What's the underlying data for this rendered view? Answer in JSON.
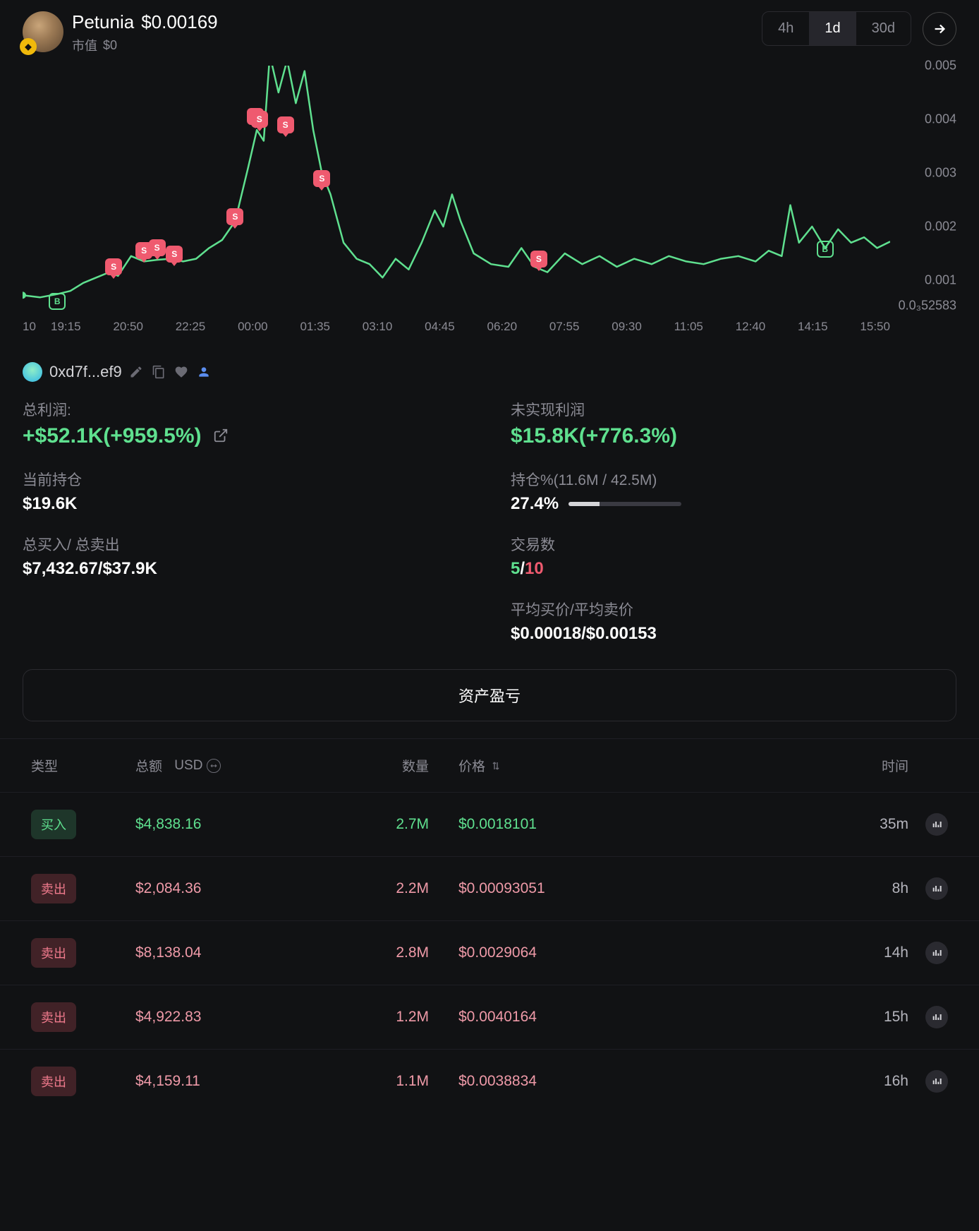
{
  "header": {
    "token_name": "Petunia",
    "token_price": "$0.00169",
    "mcap_label": "市值",
    "mcap_value": "$0",
    "chain_letter": "◆"
  },
  "timeframes": {
    "options": [
      "4h",
      "1d",
      "30d"
    ],
    "active": "1d"
  },
  "chart": {
    "type": "line",
    "line_color": "#5fe08f",
    "background_color": "#111214",
    "ylim": [
      0.00052583,
      0.005
    ],
    "y_ticks": [
      {
        "value": 0.005,
        "label": "0.005"
      },
      {
        "value": 0.004,
        "label": "0.004"
      },
      {
        "value": 0.003,
        "label": "0.003"
      },
      {
        "value": 0.002,
        "label": "0.002"
      },
      {
        "value": 0.001,
        "label": "0.001"
      },
      {
        "value": 0.00052583,
        "label": "0.0₃52583"
      }
    ],
    "x_left_label": "10",
    "x_labels": [
      "19:15",
      "20:50",
      "22:25",
      "00:00",
      "01:35",
      "03:10",
      "04:45",
      "06:20",
      "07:55",
      "09:30",
      "11:05",
      "12:40",
      "14:15",
      "15:50"
    ],
    "price_points": [
      {
        "x": 0.0,
        "y": 0.00072
      },
      {
        "x": 0.02,
        "y": 0.00068
      },
      {
        "x": 0.04,
        "y": 0.00074
      },
      {
        "x": 0.055,
        "y": 0.0008
      },
      {
        "x": 0.07,
        "y": 0.00095
      },
      {
        "x": 0.085,
        "y": 0.00105
      },
      {
        "x": 0.1,
        "y": 0.00115
      },
      {
        "x": 0.11,
        "y": 0.00108
      },
      {
        "x": 0.125,
        "y": 0.00145
      },
      {
        "x": 0.14,
        "y": 0.00135
      },
      {
        "x": 0.155,
        "y": 0.00138
      },
      {
        "x": 0.17,
        "y": 0.0014
      },
      {
        "x": 0.185,
        "y": 0.00135
      },
      {
        "x": 0.2,
        "y": 0.0014
      },
      {
        "x": 0.215,
        "y": 0.0016
      },
      {
        "x": 0.23,
        "y": 0.00175
      },
      {
        "x": 0.245,
        "y": 0.0021
      },
      {
        "x": 0.26,
        "y": 0.0031
      },
      {
        "x": 0.27,
        "y": 0.0038
      },
      {
        "x": 0.278,
        "y": 0.0036
      },
      {
        "x": 0.285,
        "y": 0.0052
      },
      {
        "x": 0.295,
        "y": 0.0045
      },
      {
        "x": 0.305,
        "y": 0.0051
      },
      {
        "x": 0.315,
        "y": 0.0043
      },
      {
        "x": 0.325,
        "y": 0.0049
      },
      {
        "x": 0.335,
        "y": 0.0038
      },
      {
        "x": 0.345,
        "y": 0.003
      },
      {
        "x": 0.355,
        "y": 0.0026
      },
      {
        "x": 0.37,
        "y": 0.0017
      },
      {
        "x": 0.385,
        "y": 0.0014
      },
      {
        "x": 0.4,
        "y": 0.0013
      },
      {
        "x": 0.415,
        "y": 0.00105
      },
      {
        "x": 0.43,
        "y": 0.0014
      },
      {
        "x": 0.445,
        "y": 0.0012
      },
      {
        "x": 0.46,
        "y": 0.0017
      },
      {
        "x": 0.475,
        "y": 0.0023
      },
      {
        "x": 0.485,
        "y": 0.002
      },
      {
        "x": 0.495,
        "y": 0.0026
      },
      {
        "x": 0.505,
        "y": 0.0021
      },
      {
        "x": 0.52,
        "y": 0.0015
      },
      {
        "x": 0.54,
        "y": 0.0013
      },
      {
        "x": 0.56,
        "y": 0.00125
      },
      {
        "x": 0.575,
        "y": 0.0016
      },
      {
        "x": 0.59,
        "y": 0.00125
      },
      {
        "x": 0.605,
        "y": 0.00115
      },
      {
        "x": 0.625,
        "y": 0.0015
      },
      {
        "x": 0.645,
        "y": 0.0013
      },
      {
        "x": 0.665,
        "y": 0.00145
      },
      {
        "x": 0.685,
        "y": 0.00125
      },
      {
        "x": 0.705,
        "y": 0.0014
      },
      {
        "x": 0.725,
        "y": 0.0013
      },
      {
        "x": 0.745,
        "y": 0.00145
      },
      {
        "x": 0.765,
        "y": 0.00135
      },
      {
        "x": 0.785,
        "y": 0.0013
      },
      {
        "x": 0.805,
        "y": 0.0014
      },
      {
        "x": 0.825,
        "y": 0.00145
      },
      {
        "x": 0.845,
        "y": 0.00135
      },
      {
        "x": 0.86,
        "y": 0.00155
      },
      {
        "x": 0.875,
        "y": 0.00145
      },
      {
        "x": 0.885,
        "y": 0.0024
      },
      {
        "x": 0.895,
        "y": 0.0017
      },
      {
        "x": 0.91,
        "y": 0.002
      },
      {
        "x": 0.925,
        "y": 0.0016
      },
      {
        "x": 0.94,
        "y": 0.00195
      },
      {
        "x": 0.955,
        "y": 0.0017
      },
      {
        "x": 0.97,
        "y": 0.0018
      },
      {
        "x": 0.985,
        "y": 0.0016
      },
      {
        "x": 1.0,
        "y": 0.00172
      }
    ],
    "markers": [
      {
        "type": "b",
        "x": 0.04,
        "y": 0.0006,
        "label": "B"
      },
      {
        "type": "s",
        "x": 0.105,
        "y": 0.00125,
        "label": "S"
      },
      {
        "type": "s",
        "x": 0.14,
        "y": 0.00155,
        "label": "S"
      },
      {
        "type": "s",
        "x": 0.155,
        "y": 0.0016,
        "label": "S"
      },
      {
        "type": "s",
        "x": 0.175,
        "y": 0.00148,
        "label": "S"
      },
      {
        "type": "s",
        "x": 0.245,
        "y": 0.00218,
        "label": "S"
      },
      {
        "type": "s",
        "x": 0.268,
        "y": 0.00405,
        "label": "S"
      },
      {
        "type": "s",
        "x": 0.273,
        "y": 0.004,
        "label": "S"
      },
      {
        "type": "s",
        "x": 0.303,
        "y": 0.0039,
        "label": "S"
      },
      {
        "type": "s",
        "x": 0.345,
        "y": 0.0029,
        "label": "S"
      },
      {
        "type": "s",
        "x": 0.595,
        "y": 0.0014,
        "label": "S"
      },
      {
        "type": "b",
        "x": 0.925,
        "y": 0.00158,
        "label": "B"
      }
    ]
  },
  "wallet": {
    "address": "0xd7f...ef9"
  },
  "stats": {
    "total_profit_label": "总利润:",
    "total_profit_value": "+$52.1K(+959.5%)",
    "unrealized_label": "未实现利润",
    "unrealized_value": "$15.8K(+776.3%)",
    "holding_label": "当前持仓",
    "holding_value": "$19.6K",
    "holding_pct_label": "持仓%(11.6M / 42.5M)",
    "holding_pct_value": "27.4%",
    "holding_pct_progress": 27.4,
    "total_buy_sell_label": "总买入/ 总卖出",
    "total_buy_sell_value": "$7,432.67/$37.9K",
    "trade_count_label": "交易数",
    "trade_buys": "5",
    "trade_sells": "10",
    "avg_price_label": "平均买价/平均卖价",
    "avg_price_value": "$0.00018/$0.00153"
  },
  "pl_button_label": "资产盈亏",
  "table": {
    "columns": {
      "type": "类型",
      "amount": "总额",
      "unit": "USD",
      "quantity": "数量",
      "price": "价格",
      "time": "时间"
    },
    "rows": [
      {
        "type": "buy",
        "type_label": "买入",
        "amount": "$4,838.16",
        "quantity": "2.7M",
        "price": "$0.0018101",
        "time": "35m"
      },
      {
        "type": "sell",
        "type_label": "卖出",
        "amount": "$2,084.36",
        "quantity": "2.2M",
        "price": "$0.00093051",
        "time": "8h"
      },
      {
        "type": "sell",
        "type_label": "卖出",
        "amount": "$8,138.04",
        "quantity": "2.8M",
        "price": "$0.0029064",
        "time": "14h"
      },
      {
        "type": "sell",
        "type_label": "卖出",
        "amount": "$4,922.83",
        "quantity": "1.2M",
        "price": "$0.0040164",
        "time": "15h"
      },
      {
        "type": "sell",
        "type_label": "卖出",
        "amount": "$4,159.11",
        "quantity": "1.1M",
        "price": "$0.0038834",
        "time": "16h"
      }
    ]
  },
  "colors": {
    "green": "#5fe08f",
    "red": "#ef5a6f",
    "pink": "#ef9aa8"
  }
}
